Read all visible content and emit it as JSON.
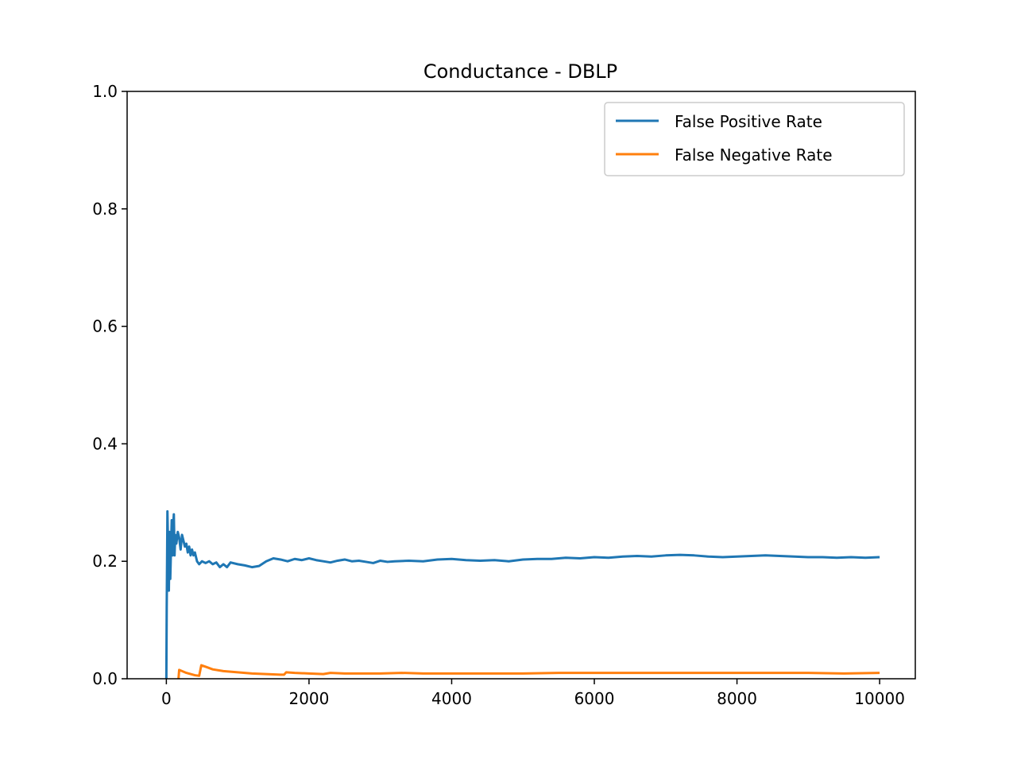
{
  "chart_data": {
    "type": "line",
    "title": "Conductance - DBLP",
    "xlabel": "",
    "ylabel": "",
    "xlim": [
      -550,
      10500
    ],
    "ylim": [
      0.0,
      1.0
    ],
    "x_ticks": [
      0,
      2000,
      4000,
      6000,
      8000,
      10000
    ],
    "x_tick_labels": [
      "0",
      "2000",
      "4000",
      "6000",
      "8000",
      "10000"
    ],
    "y_ticks": [
      0.0,
      0.2,
      0.4,
      0.6,
      0.8,
      1.0
    ],
    "y_tick_labels": [
      "0.0",
      "0.2",
      "0.4",
      "0.6",
      "0.8",
      "1.0"
    ],
    "grid": false,
    "legend_position": "top-right",
    "series": [
      {
        "name": "False Positive Rate",
        "color": "#1f77b4",
        "points": [
          [
            0,
            0.0
          ],
          [
            5,
            0.12
          ],
          [
            10,
            0.2
          ],
          [
            15,
            0.285
          ],
          [
            25,
            0.22
          ],
          [
            35,
            0.15
          ],
          [
            45,
            0.25
          ],
          [
            55,
            0.17
          ],
          [
            65,
            0.22
          ],
          [
            75,
            0.27
          ],
          [
            85,
            0.21
          ],
          [
            95,
            0.26
          ],
          [
            105,
            0.28
          ],
          [
            115,
            0.21
          ],
          [
            125,
            0.245
          ],
          [
            140,
            0.23
          ],
          [
            160,
            0.25
          ],
          [
            180,
            0.24
          ],
          [
            200,
            0.22
          ],
          [
            220,
            0.245
          ],
          [
            240,
            0.235
          ],
          [
            260,
            0.225
          ],
          [
            280,
            0.23
          ],
          [
            300,
            0.215
          ],
          [
            320,
            0.225
          ],
          [
            340,
            0.21
          ],
          [
            360,
            0.22
          ],
          [
            380,
            0.21
          ],
          [
            400,
            0.215
          ],
          [
            430,
            0.2
          ],
          [
            460,
            0.195
          ],
          [
            500,
            0.2
          ],
          [
            550,
            0.197
          ],
          [
            600,
            0.2
          ],
          [
            650,
            0.195
          ],
          [
            700,
            0.198
          ],
          [
            750,
            0.19
          ],
          [
            800,
            0.195
          ],
          [
            850,
            0.19
          ],
          [
            900,
            0.198
          ],
          [
            1000,
            0.195
          ],
          [
            1100,
            0.193
          ],
          [
            1200,
            0.19
          ],
          [
            1300,
            0.192
          ],
          [
            1400,
            0.2
          ],
          [
            1500,
            0.205
          ],
          [
            1600,
            0.203
          ],
          [
            1700,
            0.2
          ],
          [
            1800,
            0.204
          ],
          [
            1900,
            0.202
          ],
          [
            2000,
            0.205
          ],
          [
            2100,
            0.202
          ],
          [
            2200,
            0.2
          ],
          [
            2300,
            0.198
          ],
          [
            2400,
            0.201
          ],
          [
            2500,
            0.203
          ],
          [
            2600,
            0.2
          ],
          [
            2700,
            0.201
          ],
          [
            2800,
            0.199
          ],
          [
            2900,
            0.197
          ],
          [
            3000,
            0.201
          ],
          [
            3100,
            0.199
          ],
          [
            3200,
            0.2
          ],
          [
            3400,
            0.201
          ],
          [
            3600,
            0.2
          ],
          [
            3800,
            0.203
          ],
          [
            4000,
            0.204
          ],
          [
            4200,
            0.202
          ],
          [
            4400,
            0.201
          ],
          [
            4600,
            0.202
          ],
          [
            4800,
            0.2
          ],
          [
            5000,
            0.203
          ],
          [
            5200,
            0.204
          ],
          [
            5400,
            0.204
          ],
          [
            5600,
            0.206
          ],
          [
            5800,
            0.205
          ],
          [
            6000,
            0.207
          ],
          [
            6200,
            0.206
          ],
          [
            6400,
            0.208
          ],
          [
            6600,
            0.209
          ],
          [
            6800,
            0.208
          ],
          [
            7000,
            0.21
          ],
          [
            7200,
            0.211
          ],
          [
            7400,
            0.21
          ],
          [
            7600,
            0.208
          ],
          [
            7800,
            0.207
          ],
          [
            8000,
            0.208
          ],
          [
            8200,
            0.209
          ],
          [
            8400,
            0.21
          ],
          [
            8600,
            0.209
          ],
          [
            8800,
            0.208
          ],
          [
            9000,
            0.207
          ],
          [
            9200,
            0.207
          ],
          [
            9400,
            0.206
          ],
          [
            9600,
            0.207
          ],
          [
            9800,
            0.206
          ],
          [
            10000,
            0.207
          ]
        ]
      },
      {
        "name": "False Negative Rate",
        "color": "#ff7f0e",
        "points": [
          [
            170,
            0.0
          ],
          [
            180,
            0.015
          ],
          [
            280,
            0.01
          ],
          [
            400,
            0.006
          ],
          [
            460,
            0.005
          ],
          [
            490,
            0.023
          ],
          [
            560,
            0.02
          ],
          [
            650,
            0.016
          ],
          [
            800,
            0.013
          ],
          [
            1000,
            0.011
          ],
          [
            1200,
            0.009
          ],
          [
            1400,
            0.008
          ],
          [
            1600,
            0.007
          ],
          [
            1650,
            0.007
          ],
          [
            1680,
            0.011
          ],
          [
            1800,
            0.01
          ],
          [
            2000,
            0.009
          ],
          [
            2200,
            0.008
          ],
          [
            2300,
            0.01
          ],
          [
            2500,
            0.009
          ],
          [
            2800,
            0.009
          ],
          [
            3000,
            0.009
          ],
          [
            3300,
            0.01
          ],
          [
            3600,
            0.009
          ],
          [
            4000,
            0.009
          ],
          [
            4500,
            0.009
          ],
          [
            5000,
            0.009
          ],
          [
            5500,
            0.01
          ],
          [
            6000,
            0.01
          ],
          [
            6500,
            0.01
          ],
          [
            7000,
            0.01
          ],
          [
            7500,
            0.01
          ],
          [
            8000,
            0.01
          ],
          [
            8500,
            0.01
          ],
          [
            9000,
            0.01
          ],
          [
            9500,
            0.009
          ],
          [
            10000,
            0.01
          ]
        ]
      }
    ]
  }
}
